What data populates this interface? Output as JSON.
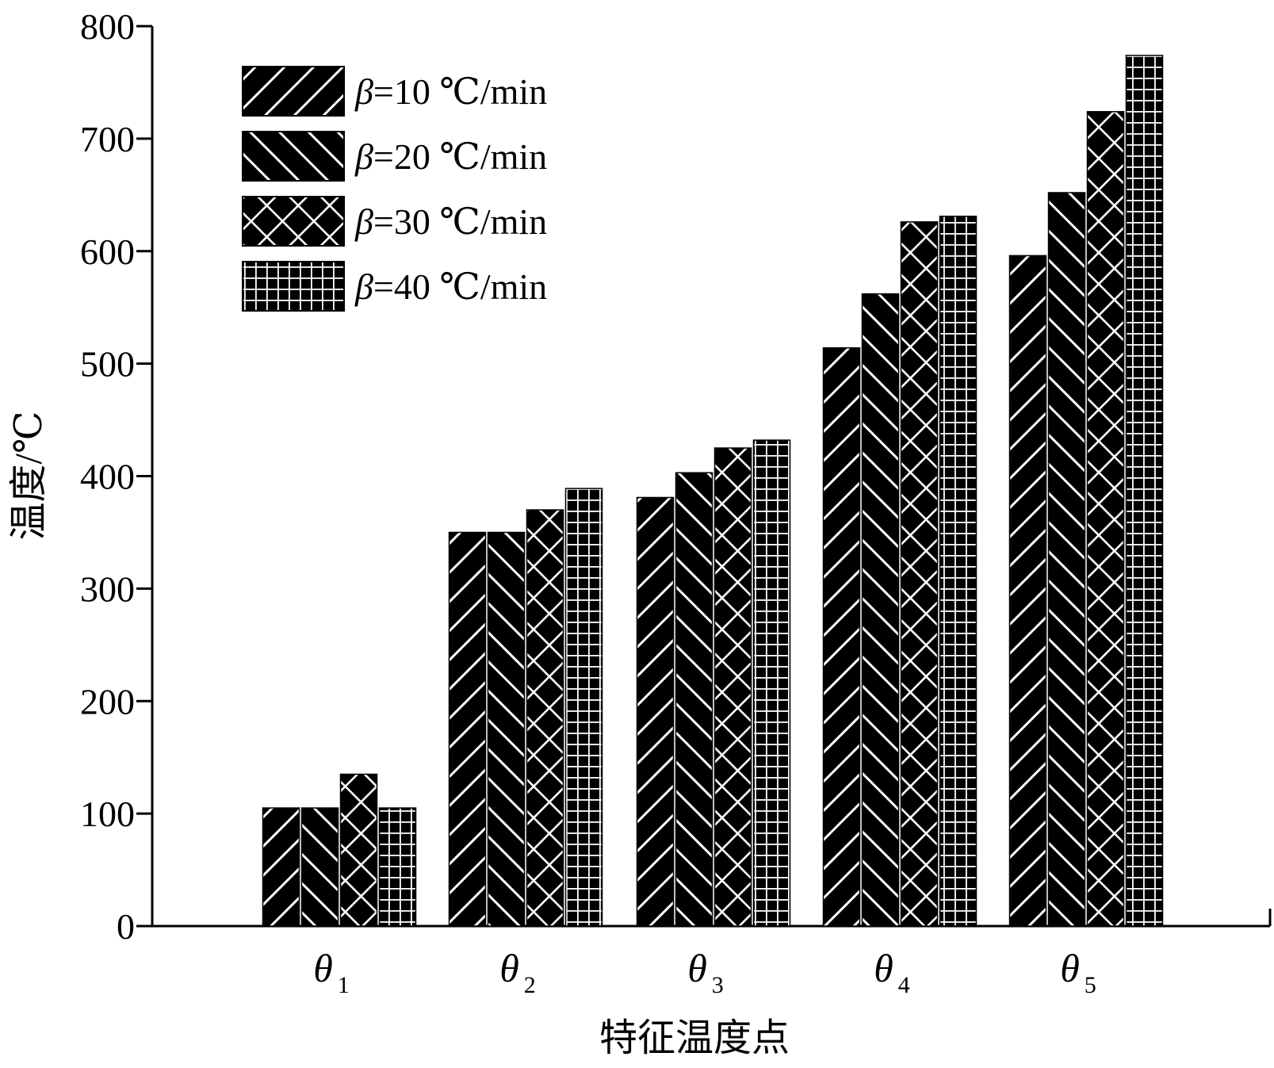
{
  "chart_data": {
    "type": "bar",
    "categories": [
      {
        "symbol": "θ",
        "sub": "1"
      },
      {
        "symbol": "θ",
        "sub": "2"
      },
      {
        "symbol": "θ",
        "sub": "3"
      },
      {
        "symbol": "θ",
        "sub": "4"
      },
      {
        "symbol": "θ",
        "sub": "5"
      }
    ],
    "series": [
      {
        "symbol": "β",
        "name": "=10 ℃/min",
        "pattern": "diag-forward",
        "values": [
          105,
          350,
          381,
          514,
          596
        ]
      },
      {
        "symbol": "β",
        "name": "=20 ℃/min",
        "pattern": "diag-backward",
        "values": [
          105,
          350,
          403,
          562,
          652
        ]
      },
      {
        "symbol": "β",
        "name": "=30 ℃/min",
        "pattern": "crosshatch",
        "values": [
          135,
          370,
          425,
          626,
          724
        ]
      },
      {
        "symbol": "β",
        "name": "=40 ℃/min",
        "pattern": "grid",
        "values": [
          105,
          389,
          432,
          631,
          774
        ]
      }
    ],
    "title": "",
    "xlabel": "特征温度点",
    "ylabel": "温度/℃",
    "ylim": [
      0,
      800
    ],
    "yticks": [
      0,
      100,
      200,
      300,
      400,
      500,
      600,
      700,
      800
    ],
    "legend_position": "top-left",
    "grid": false,
    "colors": {
      "bar_fill": "#000000",
      "hatch": "#ffffff",
      "axis": "#000000",
      "background": "#ffffff"
    }
  }
}
